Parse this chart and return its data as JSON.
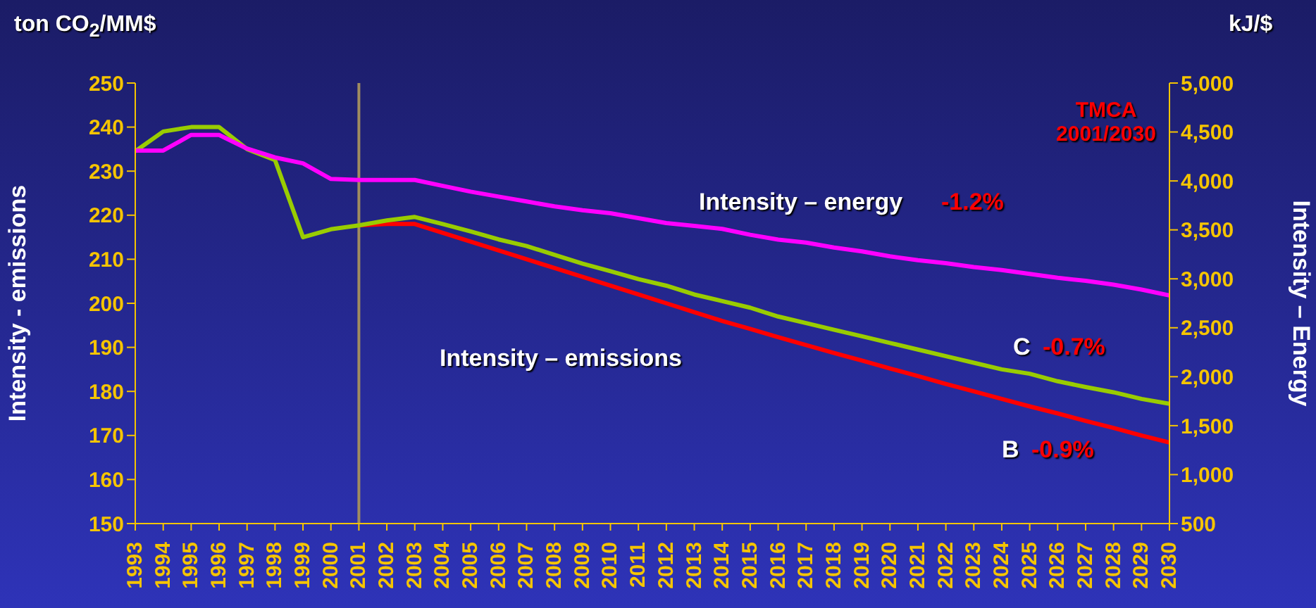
{
  "chart_data": {
    "type": "line",
    "ylabel": "Intensity - emissions",
    "y2label": "Intensity – Energy",
    "categories": [
      "1993",
      "1994",
      "1995",
      "1996",
      "1997",
      "1998",
      "1999",
      "2000",
      "2001",
      "2002",
      "2003",
      "2004",
      "2005",
      "2006",
      "2007",
      "2008",
      "2009",
      "2010",
      "2011",
      "2012",
      "2013",
      "2014",
      "2015",
      "2016",
      "2017",
      "2018",
      "2019",
      "2020",
      "2021",
      "2022",
      "2023",
      "2024",
      "2025",
      "2026",
      "2027",
      "2028",
      "2029",
      "2030"
    ],
    "series": [
      {
        "name": "B",
        "color": "#ff0000",
        "values": [
          null,
          null,
          null,
          null,
          null,
          null,
          null,
          null,
          217.7,
          218,
          218,
          216,
          214,
          212,
          210,
          208,
          206,
          204,
          202,
          200,
          198,
          196,
          194.2,
          192.3,
          190.5,
          188.7,
          187,
          185.2,
          183.5,
          181.7,
          180,
          178.3,
          176.6,
          175,
          173.3,
          171.7,
          170,
          168.4
        ]
      },
      {
        "name": "C",
        "color": "#99cc00",
        "values": [
          234.5,
          239,
          240,
          240,
          235,
          232.5,
          215,
          216.8,
          217.7,
          218.8,
          219.6,
          218,
          216.3,
          214.5,
          213,
          211,
          209,
          207.3,
          205.5,
          204,
          202,
          200.5,
          199,
          197,
          195.5,
          194,
          192.5,
          191,
          189.5,
          188,
          186.5,
          185,
          184,
          182.3,
          181,
          179.8,
          178.3,
          177.2
        ]
      },
      {
        "name": "Intensity – energy",
        "color": "#ff00ff",
        "axis": "y2",
        "values": [
          4310,
          4310,
          4470,
          4470,
          4330,
          4240,
          4180,
          4020,
          4010,
          4010,
          4010,
          3950,
          3890,
          3840,
          3790,
          3740,
          3700,
          3670,
          3620,
          3570,
          3540,
          3510,
          3450,
          3400,
          3370,
          3320,
          3280,
          3230,
          3190,
          3160,
          3120,
          3090,
          3050,
          3010,
          2980,
          2940,
          2890,
          2830
        ]
      }
    ],
    "ylim": [
      150,
      250
    ],
    "yticks": [
      150,
      160,
      170,
      180,
      190,
      200,
      210,
      220,
      230,
      240,
      250
    ],
    "y2lim": [
      500,
      5000
    ],
    "y2ticks": [
      {
        "value": 500,
        "label": "500"
      },
      {
        "value": 1000,
        "label": "1,000"
      },
      {
        "value": 1500,
        "label": "1,500"
      },
      {
        "value": 2000,
        "label": "2,000"
      },
      {
        "value": 2500,
        "label": "2,500"
      },
      {
        "value": 3000,
        "label": "3,000"
      },
      {
        "value": 3500,
        "label": "3,500"
      },
      {
        "value": 4000,
        "label": "4,000"
      },
      {
        "value": 4500,
        "label": "4,500"
      },
      {
        "value": 5000,
        "label": "5,000"
      }
    ],
    "ref_lines": [
      {
        "axis": "x",
        "value": "2001",
        "color": "#a08c60"
      }
    ],
    "annotations": [
      "ton CO$_{2}$/MM$",
      "kJ/$",
      "TMCA 2001/2030",
      "Intensity – emissions",
      "-0.9%",
      "-0.7%",
      "-1.2%"
    ],
    "marker": "none",
    "line_style": "solid"
  }
}
